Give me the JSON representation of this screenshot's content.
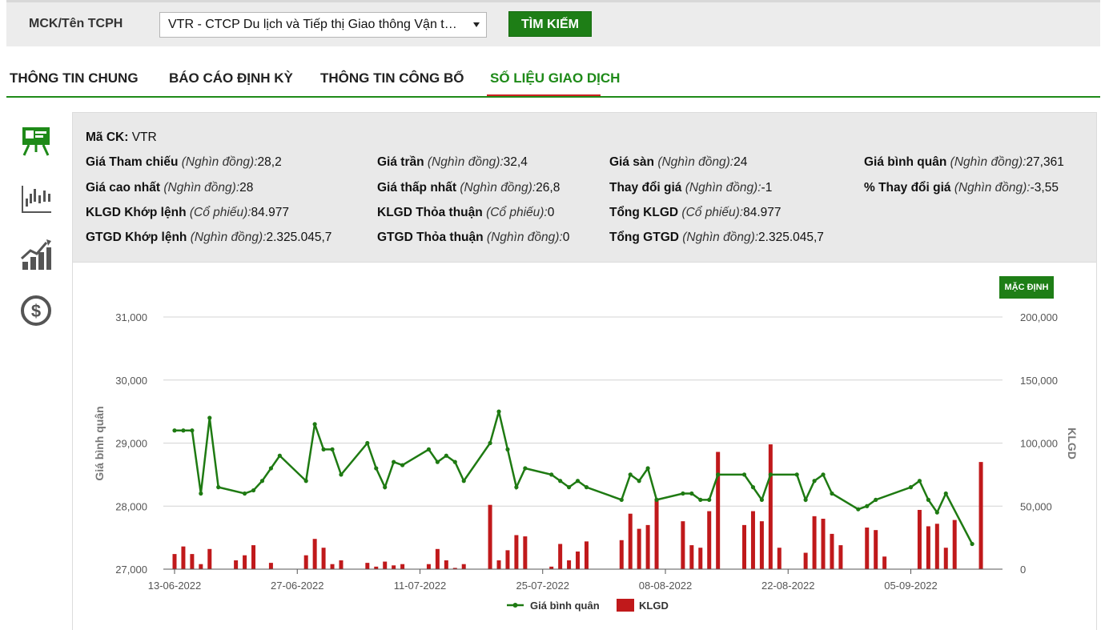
{
  "search": {
    "label": "MCK/Tên TCPH",
    "selected": "VTR - CTCP Du lịch và Tiếp thị Giao thông Vận tải Việt Nam",
    "button": "TÌM KIẾM"
  },
  "tabs": [
    {
      "label": "THÔNG TIN CHUNG"
    },
    {
      "label": "BÁO CÁO ĐỊNH KỲ"
    },
    {
      "label": "THÔNG TIN CÔNG BỐ"
    },
    {
      "label": "SỐ LIỆU GIAO DỊCH"
    }
  ],
  "sidebar": {
    "icons": [
      "presentation-icon",
      "candlestick-icon",
      "growth-chart-icon",
      "dollar-icon"
    ]
  },
  "info": {
    "ticker_label": "Mã CK:",
    "ticker_value": "VTR",
    "ref_label": "Giá Tham chiếu",
    "ref_unit": "(Nghìn đồng):",
    "ref_value": "28,2",
    "ceiling_label": "Giá trần",
    "ceiling_unit": "(Nghìn đồng):",
    "ceiling_value": "32,4",
    "floor_label": "Giá sàn",
    "floor_unit": "(Nghìn đồng):",
    "floor_value": "24",
    "avg_label": "Giá bình quân",
    "avg_unit": "(Nghìn đồng):",
    "avg_value": "27,361",
    "high_label": "Giá cao nhất",
    "high_unit": "(Nghìn đồng):",
    "high_value": "28",
    "low_label": "Giá thấp nhất",
    "low_unit": "(Nghìn đồng):",
    "low_value": "26,8",
    "change_label": "Thay đổi giá",
    "change_unit": "(Nghìn đồng):",
    "change_value": "-1",
    "pct_label": "% Thay đổi giá",
    "pct_unit": "(Nghìn đồng):",
    "pct_value": "-3,55",
    "vol_match_label": "KLGD Khớp lệnh",
    "vol_match_unit": "(Cổ phiếu):",
    "vol_match_value": "84.977",
    "vol_deal_label": "KLGD Thỏa thuận",
    "vol_deal_unit": "(Cổ phiếu):",
    "vol_deal_value": "0",
    "vol_total_label": "Tổng KLGD",
    "vol_total_unit": "(Cổ phiếu):",
    "vol_total_value": "84.977",
    "val_match_label": "GTGD Khớp lệnh",
    "val_match_unit": "(Nghìn đồng):",
    "val_match_value": "2.325.045,7",
    "val_deal_label": "GTGD Thỏa thuận",
    "val_deal_unit": "(Nghìn đồng):",
    "val_deal_value": "0",
    "val_total_label": "Tổng GTGD",
    "val_total_unit": "(Nghìn đồng):",
    "val_total_value": "2.325.045,7"
  },
  "default_button": "MẶC ĐỊNH",
  "colors": {
    "accent": "#1e7e16",
    "line": "#1e7a12",
    "bar": "#c0191b",
    "tab_underline": "#cc2222"
  },
  "chart_data": {
    "type": "bar+line",
    "x_ticks": [
      {
        "i": 0,
        "label": "13-06-2022"
      },
      {
        "i": 14,
        "label": "27-06-2022"
      },
      {
        "i": 28,
        "label": "11-07-2022"
      },
      {
        "i": 42,
        "label": "25-07-2022"
      },
      {
        "i": 56,
        "label": "08-08-2022"
      },
      {
        "i": 70,
        "label": "22-08-2022"
      },
      {
        "i": 84,
        "label": "05-09-2022"
      }
    ],
    "x_count": 94,
    "y_left": {
      "label": "Giá bình quân",
      "min": 27000,
      "max": 31000,
      "ticks": [
        {
          "v": 27000,
          "t": "27,000"
        },
        {
          "v": 28000,
          "t": "28,000"
        },
        {
          "v": 29000,
          "t": "29,000"
        },
        {
          "v": 30000,
          "t": "30,000"
        },
        {
          "v": 31000,
          "t": "31,000"
        }
      ]
    },
    "y_right": {
      "label": "KLGD",
      "min": 0,
      "max": 200000,
      "ticks": [
        {
          "v": 0,
          "t": "0"
        },
        {
          "v": 50000,
          "t": "50,000"
        },
        {
          "v": 100000,
          "t": "100,000"
        },
        {
          "v": 150000,
          "t": "150,000"
        },
        {
          "v": 200000,
          "t": "200,000"
        }
      ]
    },
    "series": [
      {
        "name": "Giá bình quân",
        "kind": "line",
        "points": [
          [
            0,
            29200
          ],
          [
            1,
            29200
          ],
          [
            2,
            29200
          ],
          [
            3,
            28200
          ],
          [
            4,
            29400
          ],
          [
            5,
            28300
          ],
          [
            8,
            28200
          ],
          [
            9,
            28250
          ],
          [
            10,
            28400
          ],
          [
            11,
            28600
          ],
          [
            12,
            28800
          ],
          [
            15,
            28400
          ],
          [
            16,
            29300
          ],
          [
            17,
            28900
          ],
          [
            18,
            28900
          ],
          [
            19,
            28500
          ],
          [
            22,
            29000
          ],
          [
            23,
            28600
          ],
          [
            24,
            28300
          ],
          [
            25,
            28700
          ],
          [
            26,
            28650
          ],
          [
            29,
            28900
          ],
          [
            30,
            28700
          ],
          [
            31,
            28800
          ],
          [
            32,
            28700
          ],
          [
            33,
            28400
          ],
          [
            36,
            29000
          ],
          [
            37,
            29500
          ],
          [
            38,
            28900
          ],
          [
            39,
            28300
          ],
          [
            40,
            28600
          ],
          [
            43,
            28500
          ],
          [
            44,
            28400
          ],
          [
            45,
            28300
          ],
          [
            46,
            28400
          ],
          [
            47,
            28300
          ],
          [
            51,
            28100
          ],
          [
            52,
            28500
          ],
          [
            53,
            28400
          ],
          [
            54,
            28600
          ],
          [
            55,
            28100
          ],
          [
            58,
            28200
          ],
          [
            59,
            28200
          ],
          [
            60,
            28100
          ],
          [
            61,
            28100
          ],
          [
            62,
            28500
          ],
          [
            65,
            28500
          ],
          [
            66,
            28300
          ],
          [
            67,
            28100
          ],
          [
            68,
            28500
          ],
          [
            71,
            28500
          ],
          [
            72,
            28100
          ],
          [
            73,
            28400
          ],
          [
            74,
            28500
          ],
          [
            75,
            28200
          ],
          [
            78,
            27950
          ],
          [
            79,
            28000
          ],
          [
            80,
            28100
          ],
          [
            84,
            28300
          ],
          [
            85,
            28400
          ],
          [
            86,
            28100
          ],
          [
            87,
            27900
          ],
          [
            88,
            28200
          ],
          [
            91,
            27400
          ]
        ]
      },
      {
        "name": "KLGD",
        "kind": "bar",
        "points": [
          [
            0,
            12000
          ],
          [
            1,
            18000
          ],
          [
            2,
            12000
          ],
          [
            3,
            4000
          ],
          [
            4,
            16000
          ],
          [
            7,
            7000
          ],
          [
            8,
            11000
          ],
          [
            9,
            19000
          ],
          [
            11,
            5000
          ],
          [
            15,
            11000
          ],
          [
            16,
            24000
          ],
          [
            17,
            17000
          ],
          [
            18,
            4000
          ],
          [
            19,
            7000
          ],
          [
            22,
            5000
          ],
          [
            23,
            2000
          ],
          [
            24,
            6000
          ],
          [
            25,
            3000
          ],
          [
            26,
            4000
          ],
          [
            29,
            4000
          ],
          [
            30,
            16000
          ],
          [
            31,
            7000
          ],
          [
            32,
            1000
          ],
          [
            33,
            4000
          ],
          [
            36,
            51000
          ],
          [
            37,
            7000
          ],
          [
            38,
            15000
          ],
          [
            39,
            27000
          ],
          [
            40,
            26000
          ],
          [
            43,
            2000
          ],
          [
            44,
            20000
          ],
          [
            45,
            7000
          ],
          [
            46,
            14000
          ],
          [
            47,
            22000
          ],
          [
            51,
            23000
          ],
          [
            52,
            44000
          ],
          [
            53,
            32000
          ],
          [
            54,
            35000
          ],
          [
            55,
            56000
          ],
          [
            58,
            38000
          ],
          [
            59,
            19000
          ],
          [
            60,
            17000
          ],
          [
            61,
            46000
          ],
          [
            62,
            93000
          ],
          [
            65,
            35000
          ],
          [
            66,
            46000
          ],
          [
            67,
            38000
          ],
          [
            68,
            99000
          ],
          [
            69,
            17000
          ],
          [
            72,
            13000
          ],
          [
            73,
            42000
          ],
          [
            74,
            40000
          ],
          [
            75,
            28000
          ],
          [
            76,
            19000
          ],
          [
            79,
            33000
          ],
          [
            80,
            31000
          ],
          [
            81,
            10000
          ],
          [
            85,
            47000
          ],
          [
            86,
            34000
          ],
          [
            87,
            36000
          ],
          [
            88,
            17000
          ],
          [
            89,
            39000
          ],
          [
            92,
            85000
          ]
        ]
      }
    ],
    "legend": [
      "Giá bình quân",
      "KLGD"
    ]
  }
}
